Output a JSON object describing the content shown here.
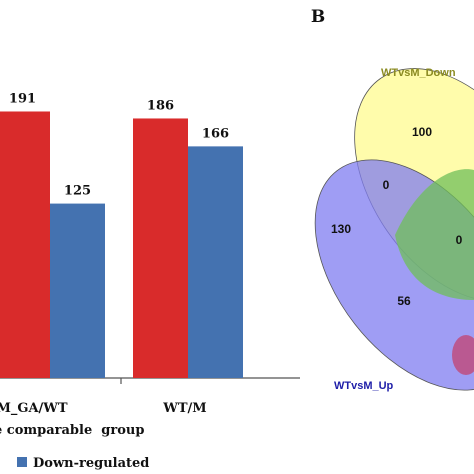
{
  "chart_data": [
    {
      "type": "bar",
      "categories": [
        "M_GA/WT",
        "WT/M"
      ],
      "series": [
        {
          "values": [
            191,
            186
          ],
          "color": "#d92b2b"
        },
        {
          "name": "Down-regulated",
          "values": [
            125,
            166
          ],
          "color": "#4472b0"
        }
      ],
      "xlabel": "e comparable  group",
      "ylim": [
        0,
        215
      ],
      "grid": false,
      "legend": "bottom"
    },
    {
      "type": "venn",
      "panel_label": "B",
      "sets": [
        {
          "name": "WTvsM_Down",
          "color": "#fffb9c",
          "label_color": "#8b8b22"
        },
        {
          "name": "WTvsM_Up",
          "color": "#7f7cf0",
          "label_color": "#1e1ea8"
        }
      ],
      "values": [
        "100",
        "0",
        "130",
        "0",
        "56"
      ]
    }
  ]
}
